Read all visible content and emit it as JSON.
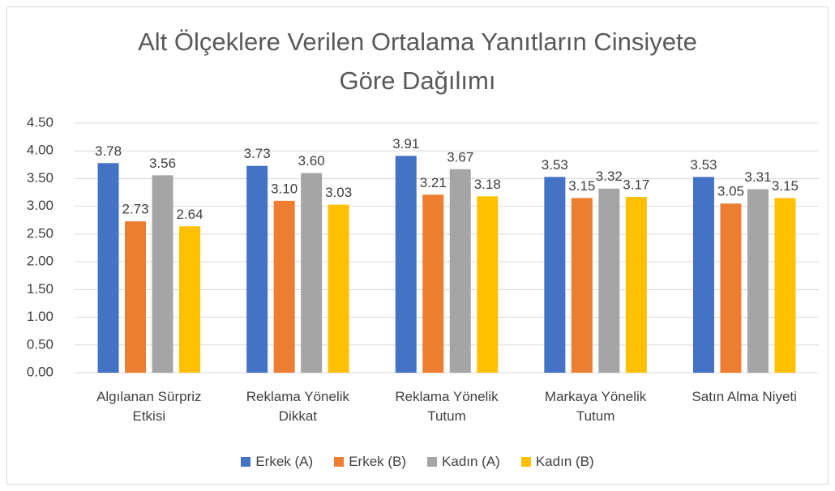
{
  "chart_data": {
    "type": "bar",
    "title": "Alt Ölçeklere Verilen Ortalama Yanıtların Cinsiyete Göre Dağılımı",
    "categories": [
      "Algılanan Sürpriz Etkisi",
      "Reklama Yönelik Dikkat",
      "Reklama Yönelik Tutum",
      "Markaya Yönelik Tutum",
      "Satın Alma Niyeti"
    ],
    "series": [
      {
        "name": "Erkek (A)",
        "color": "#4472c4",
        "values": [
          3.78,
          3.73,
          3.91,
          3.53,
          3.53
        ],
        "value_labels": [
          "3.78",
          "3.73",
          "3.91",
          "3.53",
          "3.53"
        ]
      },
      {
        "name": "Erkek (B)",
        "color": "#ed7d31",
        "values": [
          2.73,
          3.1,
          3.21,
          3.15,
          3.05
        ],
        "value_labels": [
          "2.73",
          "3.10",
          "3.21",
          "3.15",
          "3.05"
        ]
      },
      {
        "name": "Kadın (A)",
        "color": "#a5a5a5",
        "values": [
          3.56,
          3.6,
          3.67,
          3.32,
          3.31
        ],
        "value_labels": [
          "3.56",
          "3.60",
          "3.67",
          "3.32",
          "3.31"
        ]
      },
      {
        "name": "Kadın (B)",
        "color": "#ffc000",
        "values": [
          2.64,
          3.03,
          3.18,
          3.17,
          3.15
        ],
        "value_labels": [
          "2.64",
          "3.03",
          "3.18",
          "3.17",
          "3.15"
        ]
      }
    ],
    "ylim": [
      0,
      4.5
    ],
    "yticks": [
      {
        "value": 0,
        "label": "0.00"
      },
      {
        "value": 0.5,
        "label": "0.50"
      },
      {
        "value": 1,
        "label": "1.00"
      },
      {
        "value": 1.5,
        "label": "1.50"
      },
      {
        "value": 2,
        "label": "2.00"
      },
      {
        "value": 2.5,
        "label": "2.50"
      },
      {
        "value": 3,
        "label": "3.00"
      },
      {
        "value": 3.5,
        "label": "3.50"
      },
      {
        "value": 4,
        "label": "4.00"
      },
      {
        "value": 4.5,
        "label": "4.50"
      }
    ],
    "grid": true,
    "legend": "bottom"
  }
}
